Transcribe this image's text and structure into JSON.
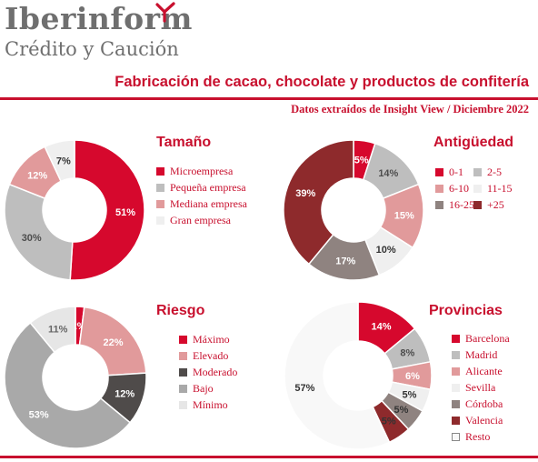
{
  "brand": {
    "name": "Iberinform",
    "tagline": "Crédito y Caución",
    "accent": "#c8102e"
  },
  "title": "Fabricación de cacao, chocolate y productos de confitería",
  "subtitle": "Datos extraídos de Insight View / Diciembre  2022",
  "chart_data": [
    {
      "type": "pie",
      "title": "Tamaño",
      "categories": [
        "Microempresa",
        "Pequeña empresa",
        "Mediana empresa",
        "Gran empresa"
      ],
      "values": [
        51,
        30,
        12,
        7
      ],
      "labels": [
        "51%",
        "30%",
        "12%",
        "7%"
      ],
      "colors": [
        "#d6082d",
        "#bebebe",
        "#e19a9b",
        "#efefef"
      ],
      "label_colors": [
        "#ffffff",
        "#4d4d4d",
        "#ffffff",
        "#333333"
      ],
      "legend": "right"
    },
    {
      "type": "pie",
      "title": "Antigüedad",
      "categories": [
        "0-1",
        "2-5",
        "6-10",
        "11-15",
        "16-25",
        "+25"
      ],
      "values": [
        5,
        14,
        15,
        10,
        17,
        39
      ],
      "labels": [
        "5%",
        "14%",
        "15%",
        "10%",
        "17%",
        "39%"
      ],
      "colors": [
        "#d6082d",
        "#bebebe",
        "#e19a9b",
        "#efefef",
        "#8f8380",
        "#8e2a2c"
      ],
      "label_colors": [
        "#ffffff",
        "#4d4d4d",
        "#ffffff",
        "#333333",
        "#ffffff",
        "#ffffff"
      ],
      "legend": "right"
    },
    {
      "type": "pie",
      "title": "Riesgo",
      "categories": [
        "Máximo",
        "Elevado",
        "Moderado",
        "Bajo",
        "Mínimo"
      ],
      "values": [
        2,
        22,
        12,
        53,
        11
      ],
      "labels": [
        "2%",
        "22%",
        "12%",
        "53%",
        "11%"
      ],
      "colors": [
        "#d6082d",
        "#e19a9b",
        "#4f4b4a",
        "#a9a9a9",
        "#e6e6e6"
      ],
      "label_colors": [
        "#ffffff",
        "#ffffff",
        "#ffffff",
        "#ffffff",
        "#666666"
      ],
      "legend": "right"
    },
    {
      "type": "pie",
      "title": "Provincias",
      "categories": [
        "Barcelona",
        "Madrid",
        "Alicante",
        "Sevilla",
        "Córdoba",
        "Valencia",
        "Resto"
      ],
      "values": [
        14,
        8,
        6,
        5,
        5,
        5,
        57
      ],
      "labels": [
        "14%",
        "8%",
        "6%",
        "5%",
        "5%",
        "5%",
        "57%"
      ],
      "colors": [
        "#d6082d",
        "#bebebe",
        "#e19a9b",
        "#efefef",
        "#8f8380",
        "#8e2a2c",
        "#f8f8f8"
      ],
      "label_colors": [
        "#ffffff",
        "#4d4d4d",
        "#ffffff",
        "#333333",
        "#333333",
        "#333333",
        "#333333"
      ],
      "legend": "right"
    }
  ]
}
